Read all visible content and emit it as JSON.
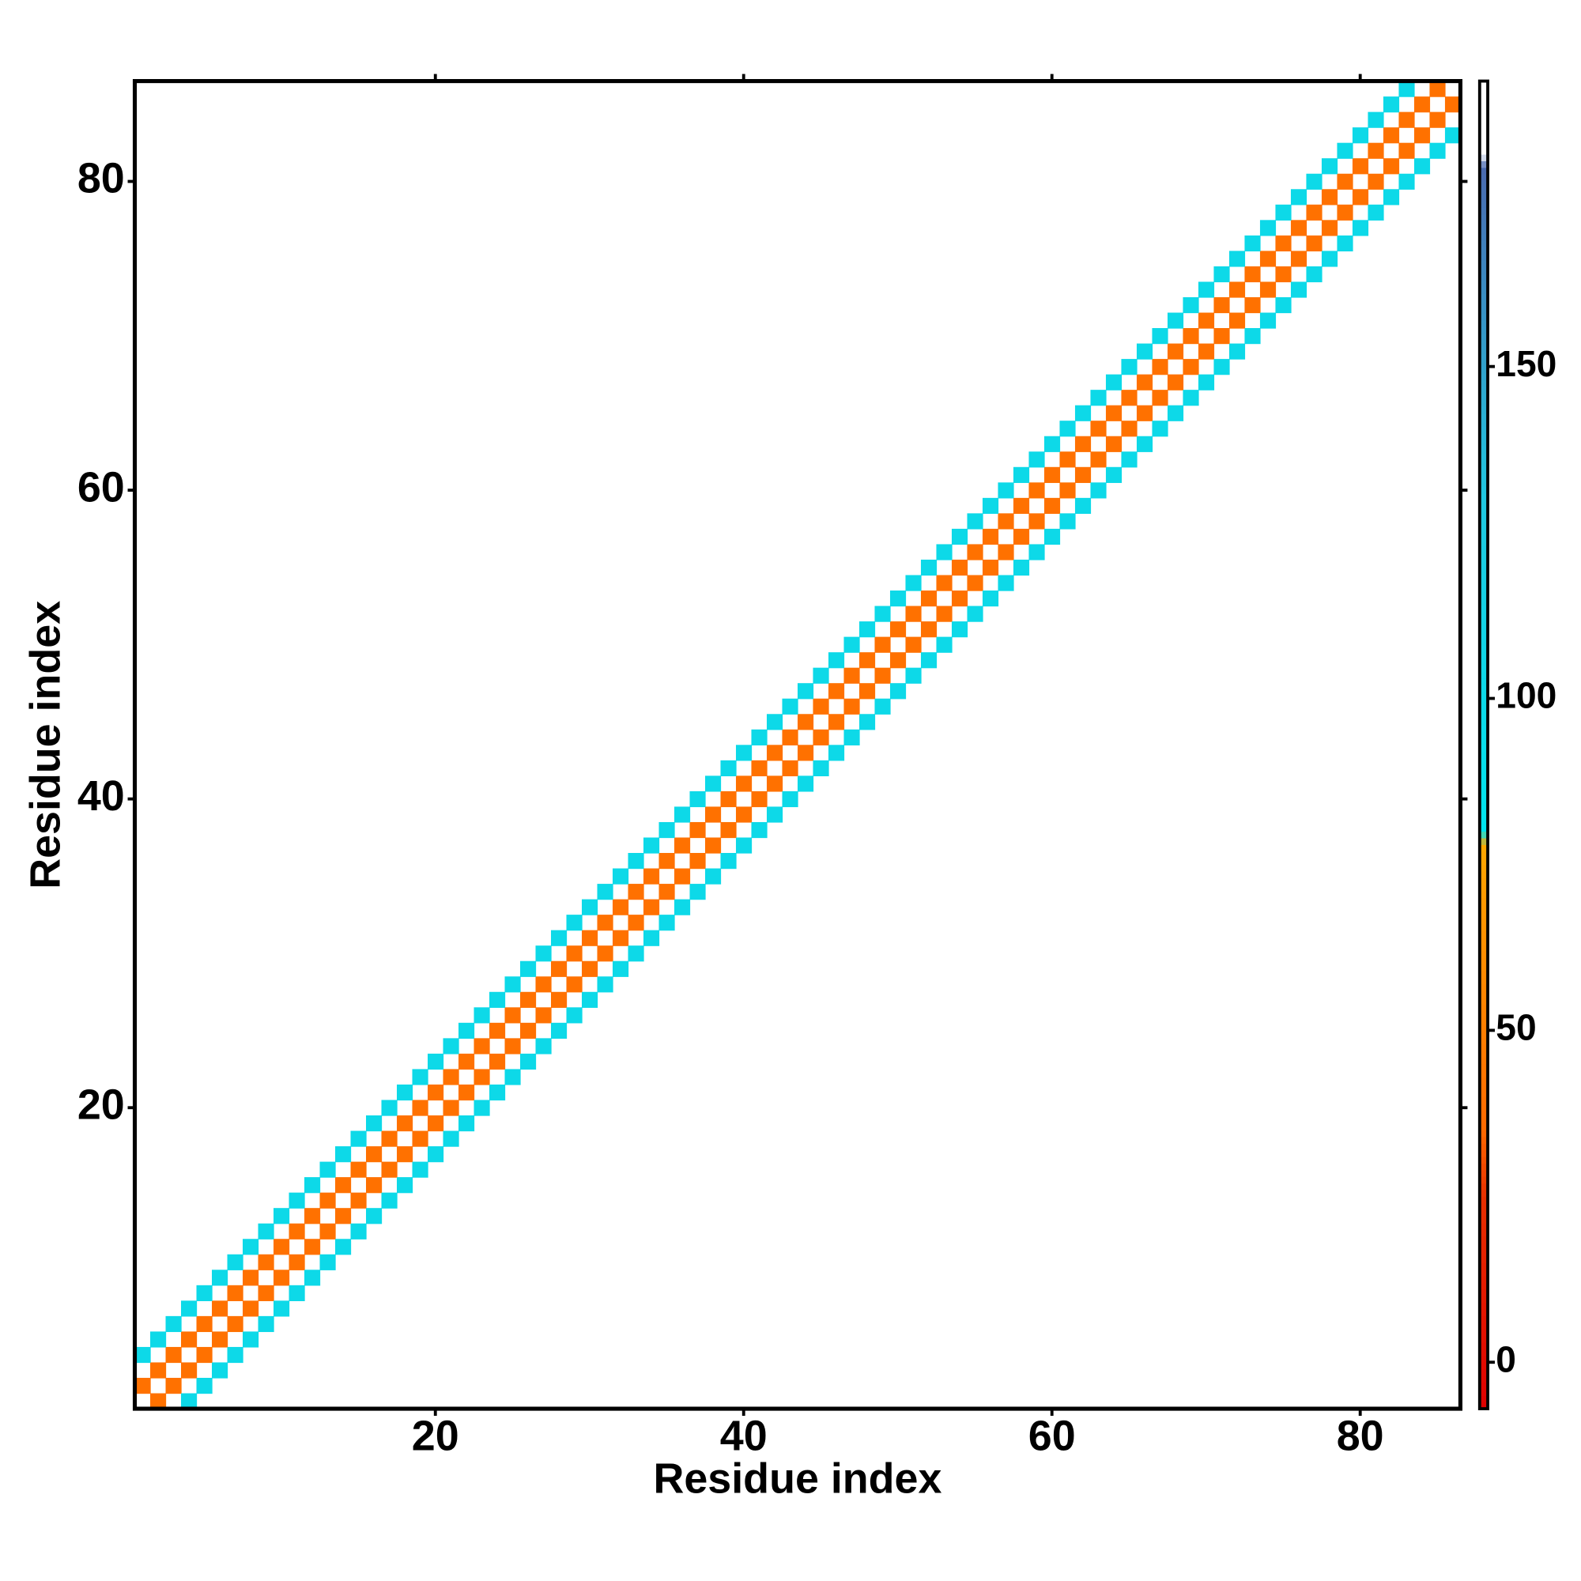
{
  "chart_data": {
    "type": "heatmap",
    "x_label": "Residue index",
    "y_label": "Residue index",
    "xlim": [
      0.5,
      86.5
    ],
    "ylim": [
      0.5,
      86.5
    ],
    "xticks": [
      20,
      40,
      60,
      80
    ],
    "yticks": [
      20,
      40,
      60,
      80
    ],
    "zlim": [
      -7,
      193
    ],
    "zticks": [
      0,
      50,
      100,
      150
    ],
    "colorscale": [
      [
        -7,
        "#e00000"
      ],
      [
        25,
        "#e83000"
      ],
      [
        35,
        "#ff6a00"
      ],
      [
        70,
        "#ff9a00"
      ],
      [
        78,
        "#ffa800"
      ],
      [
        80,
        "#00e5ee"
      ],
      [
        130,
        "#20c8e0"
      ],
      [
        180,
        "#4a6ab0"
      ],
      [
        182,
        "#ffffff"
      ],
      [
        193,
        "#ffffff"
      ]
    ],
    "x": [
      1,
      2,
      3,
      4,
      5,
      6,
      7,
      8,
      9,
      10,
      11,
      12,
      13,
      14,
      15,
      16,
      17,
      18,
      19,
      20,
      21,
      22,
      23,
      24,
      25,
      26,
      27,
      28,
      29,
      30,
      31,
      32,
      33,
      34,
      35,
      36,
      37,
      38,
      39,
      40,
      41,
      42,
      43,
      44,
      45,
      46,
      47,
      48,
      49,
      50,
      51,
      52,
      53,
      54,
      55,
      56,
      57,
      58,
      59,
      60,
      61,
      62,
      63,
      64,
      65,
      66,
      67,
      68,
      69,
      70,
      71,
      72,
      73,
      74,
      75,
      76,
      77,
      78,
      79,
      80,
      81,
      82,
      83,
      84,
      85,
      2,
      3,
      4,
      5,
      6,
      7,
      8,
      9,
      10,
      11,
      12,
      13,
      14,
      15,
      16,
      17,
      18,
      19,
      20,
      21,
      22,
      23,
      24,
      25,
      26,
      27,
      28,
      29,
      30,
      31,
      32,
      33,
      34,
      35,
      36,
      37,
      38,
      39,
      40,
      41,
      42,
      43,
      44,
      45,
      46,
      47,
      48,
      49,
      50,
      51,
      52,
      53,
      54,
      55,
      56,
      57,
      58,
      59,
      60,
      61,
      62,
      63,
      64,
      65,
      66,
      67,
      68,
      69,
      70,
      71,
      72,
      73,
      74,
      75,
      76,
      77,
      78,
      79,
      80,
      81,
      82,
      83,
      84,
      85,
      86,
      1,
      2,
      3,
      4,
      5,
      6,
      7,
      8,
      9,
      10,
      11,
      12,
      13,
      14,
      15,
      16,
      17,
      18,
      19,
      20,
      21,
      22,
      23,
      24,
      25,
      26,
      27,
      28,
      29,
      30,
      31,
      32,
      33,
      34,
      35,
      36,
      37,
      38,
      39,
      40,
      41,
      42,
      43,
      44,
      45,
      46,
      47,
      48,
      49,
      50,
      51,
      52,
      53,
      54,
      55,
      56,
      57,
      58,
      59,
      60,
      61,
      62,
      63,
      64,
      65,
      66,
      67,
      68,
      69,
      70,
      71,
      72,
      73,
      74,
      75,
      76,
      77,
      78,
      79,
      80,
      81,
      82,
      83,
      4,
      5,
      6,
      7,
      8,
      9,
      10,
      11,
      12,
      13,
      14,
      15,
      16,
      17,
      18,
      19,
      20,
      21,
      22,
      23,
      24,
      25,
      26,
      27,
      28,
      29,
      30,
      31,
      32,
      33,
      34,
      35,
      36,
      37,
      38,
      39,
      40,
      41,
      42,
      43,
      44,
      45,
      46,
      47,
      48,
      49,
      50,
      51,
      52,
      53,
      54,
      55,
      56,
      57,
      58,
      59,
      60,
      61,
      62,
      63,
      64,
      65,
      66,
      67,
      68,
      69,
      70,
      71,
      72,
      73,
      74,
      75,
      76,
      77,
      78,
      79,
      80,
      81,
      82,
      83,
      84,
      85,
      86
    ],
    "y": [
      2,
      3,
      4,
      5,
      6,
      7,
      8,
      9,
      10,
      11,
      12,
      13,
      14,
      15,
      16,
      17,
      18,
      19,
      20,
      21,
      22,
      23,
      24,
      25,
      26,
      27,
      28,
      29,
      30,
      31,
      32,
      33,
      34,
      35,
      36,
      37,
      38,
      39,
      40,
      41,
      42,
      43,
      44,
      45,
      46,
      47,
      48,
      49,
      50,
      51,
      52,
      53,
      54,
      55,
      56,
      57,
      58,
      59,
      60,
      61,
      62,
      63,
      64,
      65,
      66,
      67,
      68,
      69,
      70,
      71,
      72,
      73,
      74,
      75,
      76,
      77,
      78,
      79,
      80,
      81,
      82,
      83,
      84,
      85,
      86,
      1,
      2,
      3,
      4,
      5,
      6,
      7,
      8,
      9,
      10,
      11,
      12,
      13,
      14,
      15,
      16,
      17,
      18,
      19,
      20,
      21,
      22,
      23,
      24,
      25,
      26,
      27,
      28,
      29,
      30,
      31,
      32,
      33,
      34,
      35,
      36,
      37,
      38,
      39,
      40,
      41,
      42,
      43,
      44,
      45,
      46,
      47,
      48,
      49,
      50,
      51,
      52,
      53,
      54,
      55,
      56,
      57,
      58,
      59,
      60,
      61,
      62,
      63,
      64,
      65,
      66,
      67,
      68,
      69,
      70,
      71,
      72,
      73,
      74,
      75,
      76,
      77,
      78,
      79,
      80,
      81,
      82,
      83,
      84,
      85,
      4,
      5,
      6,
      7,
      8,
      9,
      10,
      11,
      12,
      13,
      14,
      15,
      16,
      17,
      18,
      19,
      20,
      21,
      22,
      23,
      24,
      25,
      26,
      27,
      28,
      29,
      30,
      31,
      32,
      33,
      34,
      35,
      36,
      37,
      38,
      39,
      40,
      41,
      42,
      43,
      44,
      45,
      46,
      47,
      48,
      49,
      50,
      51,
      52,
      53,
      54,
      55,
      56,
      57,
      58,
      59,
      60,
      61,
      62,
      63,
      64,
      65,
      66,
      67,
      68,
      69,
      70,
      71,
      72,
      73,
      74,
      75,
      76,
      77,
      78,
      79,
      80,
      81,
      82,
      83,
      84,
      85,
      86,
      1,
      2,
      3,
      4,
      5,
      6,
      7,
      8,
      9,
      10,
      11,
      12,
      13,
      14,
      15,
      16,
      17,
      18,
      19,
      20,
      21,
      22,
      23,
      24,
      25,
      26,
      27,
      28,
      29,
      30,
      31,
      32,
      33,
      34,
      35,
      36,
      37,
      38,
      39,
      40,
      41,
      42,
      43,
      44,
      45,
      46,
      47,
      48,
      49,
      50,
      51,
      52,
      53,
      54,
      55,
      56,
      57,
      58,
      59,
      60,
      61,
      62,
      63,
      64,
      65,
      66,
      67,
      68,
      69,
      70,
      71,
      72,
      73,
      74,
      75,
      76,
      77,
      78,
      79,
      80,
      81,
      82,
      83
    ],
    "values": [
      40,
      40,
      40,
      40,
      40,
      40,
      40,
      40,
      40,
      40,
      40,
      40,
      40,
      40,
      40,
      40,
      40,
      40,
      40,
      40,
      40,
      40,
      40,
      40,
      40,
      40,
      40,
      40,
      40,
      40,
      40,
      40,
      40,
      40,
      40,
      40,
      40,
      40,
      40,
      40,
      40,
      40,
      40,
      40,
      40,
      40,
      40,
      40,
      40,
      40,
      40,
      40,
      40,
      40,
      40,
      40,
      40,
      40,
      40,
      40,
      40,
      40,
      40,
      40,
      40,
      40,
      40,
      40,
      40,
      40,
      40,
      40,
      40,
      40,
      40,
      40,
      40,
      40,
      40,
      40,
      40,
      40,
      40,
      40,
      40,
      40,
      40,
      40,
      40,
      40,
      40,
      40,
      40,
      40,
      40,
      40,
      40,
      40,
      40,
      40,
      40,
      40,
      40,
      40,
      40,
      40,
      40,
      40,
      40,
      40,
      40,
      40,
      40,
      40,
      40,
      40,
      40,
      40,
      40,
      40,
      40,
      40,
      40,
      40,
      40,
      40,
      40,
      40,
      40,
      40,
      40,
      40,
      40,
      40,
      40,
      40,
      40,
      40,
      40,
      40,
      40,
      40,
      40,
      40,
      40,
      40,
      40,
      40,
      40,
      40,
      40,
      40,
      40,
      40,
      40,
      40,
      40,
      40,
      40,
      40,
      40,
      40,
      40,
      40,
      40,
      40,
      40,
      40,
      40,
      40,
      100,
      100,
      100,
      100,
      100,
      100,
      100,
      100,
      100,
      100,
      100,
      100,
      100,
      100,
      100,
      100,
      100,
      100,
      100,
      100,
      100,
      100,
      100,
      100,
      100,
      100,
      100,
      100,
      100,
      100,
      100,
      100,
      100,
      100,
      100,
      100,
      100,
      100,
      100,
      100,
      100,
      100,
      100,
      100,
      100,
      100,
      100,
      100,
      100,
      100,
      100,
      100,
      100,
      100,
      100,
      100,
      100,
      100,
      100,
      100,
      100,
      100,
      100,
      100,
      100,
      100,
      100,
      100,
      100,
      100,
      100,
      100,
      100,
      100,
      100,
      100,
      100,
      100,
      100,
      100,
      100,
      100,
      100,
      100,
      100,
      100,
      100,
      100,
      100,
      100,
      100,
      100,
      100,
      100,
      100,
      100,
      100,
      100,
      100,
      100,
      100,
      100,
      100,
      100,
      100,
      100,
      100,
      100,
      100,
      100,
      100,
      100,
      100,
      100,
      100,
      100,
      100,
      100,
      100,
      100,
      100,
      100,
      100,
      100,
      100,
      100,
      100,
      100,
      100,
      100,
      100,
      100,
      100,
      100,
      100,
      100,
      100,
      100,
      100,
      100,
      100,
      100,
      100,
      100,
      100,
      100,
      100,
      100,
      100,
      100,
      100,
      100,
      100,
      100,
      100,
      100,
      100,
      100,
      100,
      100,
      100,
      100,
      100,
      100,
      100,
      100
    ]
  }
}
